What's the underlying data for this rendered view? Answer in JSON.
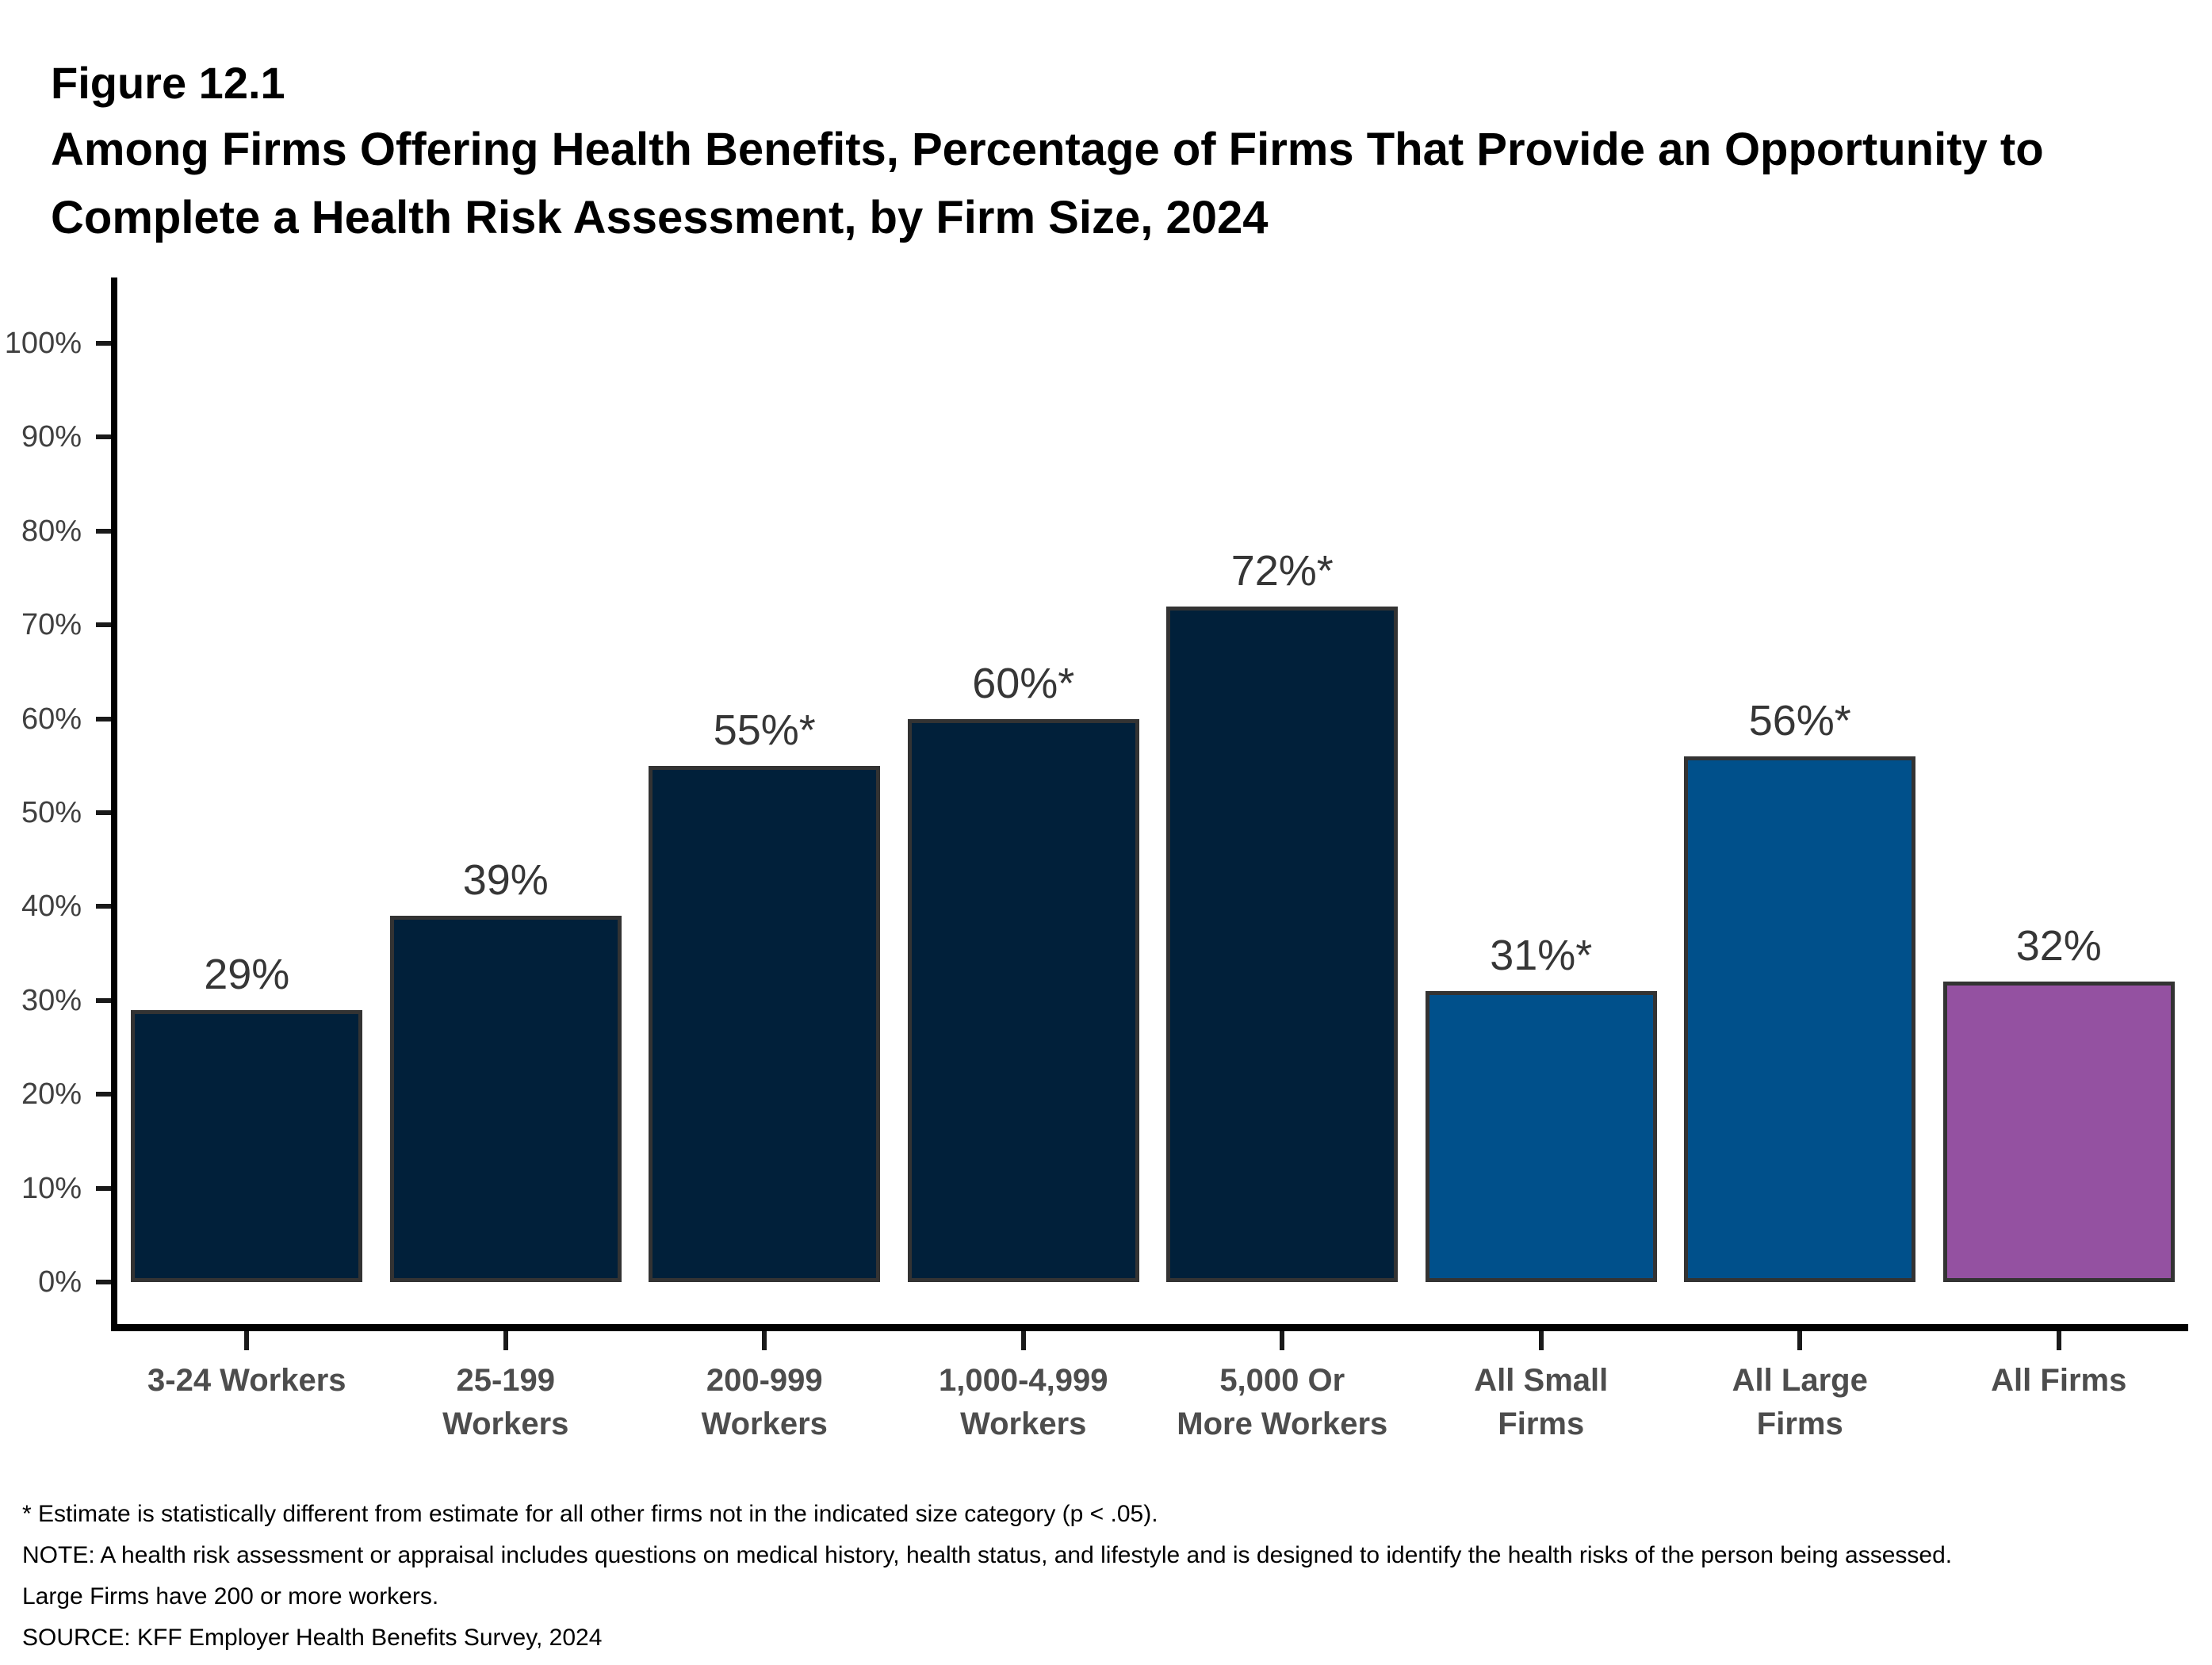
{
  "header": {
    "figure_label": "Figure 12.1",
    "title_lines": [
      "Among Firms Offering Health Benefits, Percentage of Firms That Provide an Opportunity to",
      "Complete a Health Risk Assessment, by Firm Size, 2024"
    ]
  },
  "chart_data": {
    "type": "bar",
    "title": "Among Firms Offering Health Benefits, Percentage of Firms That Provide an Opportunity to Complete a Health Risk Assessment, by Firm Size, 2024",
    "xlabel": "",
    "ylabel": "",
    "categories": [
      "3-24 Workers",
      "25-199 Workers",
      "200-999 Workers",
      "1,000-4,999 Workers",
      "5,000 Or More Workers",
      "All Small Firms",
      "All Large Firms",
      "All Firms"
    ],
    "axis_label_lines": [
      "3-24 Workers",
      "25-199\nWorkers",
      "200-999\nWorkers",
      "1,000-4,999\nWorkers",
      "5,000 Or\nMore Workers",
      "All Small\nFirms",
      "All Large\nFirms",
      "All Firms"
    ],
    "values": [
      29,
      39,
      55,
      60,
      72,
      31,
      56,
      32
    ],
    "value_labels": [
      "29%",
      "39%",
      "55%*",
      "60%*",
      "72%*",
      "31%*",
      "56%*",
      "32%"
    ],
    "bar_colors": [
      "#01203a",
      "#01203a",
      "#01203a",
      "#01203a",
      "#01203a",
      "#00508b",
      "#00508b",
      "#9451a1"
    ],
    "y_axis": {
      "range": [
        0,
        100
      ],
      "ticks": [
        0,
        10,
        20,
        30,
        40,
        50,
        60,
        70,
        80,
        90,
        100
      ],
      "tick_labels": [
        "0%",
        "10%",
        "20%",
        "30%",
        "40%",
        "50%",
        "60%",
        "70%",
        "80%",
        "90%",
        "100%"
      ]
    },
    "grid": false,
    "legend": false,
    "statistical_marker": "*"
  },
  "colors": {
    "navy": "#01203a",
    "blue": "#00508b",
    "purple": "#9451a1",
    "bar_border": "#333333",
    "axis": "#000000",
    "tick_label": "#404040",
    "category_label": "#4d4d4d",
    "value_label": "#363636"
  },
  "footnotes": {
    "star_note": "* Estimate is statistically different from estimate for all other firms not in the indicated size category (p < .05).",
    "note": "NOTE: A health risk assessment or appraisal includes questions on medical history, health status, and lifestyle and is designed to identify the health risks of the person being assessed.  Large Firms have 200 or more workers.",
    "source": "SOURCE: KFF Employer Health Benefits Survey, 2024"
  }
}
